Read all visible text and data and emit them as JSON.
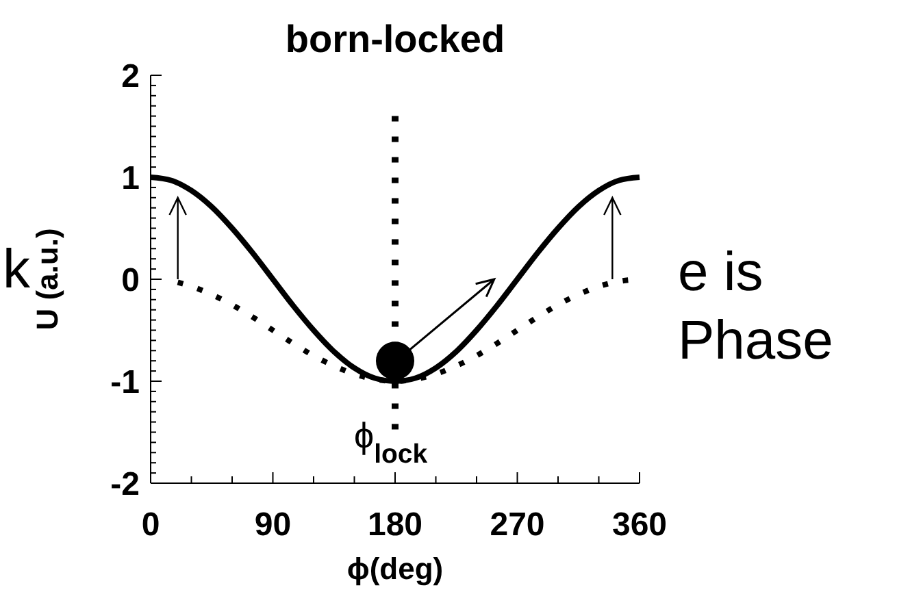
{
  "chart_data": {
    "type": "line",
    "title": "born-locked",
    "xlabel": "ϕ(deg)",
    "ylabel": "U (a.u.)",
    "xlim": [
      0,
      360
    ],
    "xticks": [
      0,
      90,
      180,
      270,
      360
    ],
    "ylim": [
      -2,
      2
    ],
    "yticks": [
      -2,
      -1,
      0,
      1,
      2
    ],
    "grid": false,
    "series": [
      {
        "color": "#000000",
        "line_style": "solid",
        "x": [
          0,
          15,
          30,
          45,
          60,
          75,
          90,
          105,
          120,
          135,
          150,
          165,
          180,
          195,
          210,
          225,
          240,
          255,
          270,
          285,
          300,
          315,
          330,
          345,
          360
        ],
        "values": [
          1,
          0.97,
          0.87,
          0.71,
          0.5,
          0.26,
          0,
          -0.26,
          -0.5,
          -0.71,
          -0.87,
          -0.97,
          -1,
          -0.97,
          -0.87,
          -0.71,
          -0.5,
          -0.26,
          0,
          0.26,
          0.5,
          0.71,
          0.87,
          0.97,
          1
        ]
      },
      {
        "color": "#000000",
        "line_style": "dotted",
        "x": [
          20,
          30,
          45,
          60,
          75,
          90,
          105,
          120,
          135,
          150,
          165,
          180,
          195,
          210,
          225,
          240,
          255,
          270,
          285,
          300,
          315,
          330,
          345,
          360
        ],
        "values": [
          -0.03,
          -0.07,
          -0.15,
          -0.25,
          -0.37,
          -0.5,
          -0.63,
          -0.75,
          -0.85,
          -0.93,
          -0.98,
          -1,
          -0.98,
          -0.93,
          -0.85,
          -0.75,
          -0.63,
          -0.5,
          -0.37,
          -0.25,
          -0.15,
          -0.07,
          -0.02,
          0
        ]
      },
      {
        "type": "scatter",
        "color": "#000000",
        "marker": "circle",
        "x": [
          180
        ],
        "values": [
          -0.8
        ]
      }
    ],
    "ref_lines": [
      {
        "axis": "x",
        "value": 180,
        "label": "ϕ$_{lock}$",
        "line_style": "dotted",
        "color": "#000000"
      }
    ],
    "annotations": [
      "k",
      "e is",
      "Phase"
    ]
  }
}
